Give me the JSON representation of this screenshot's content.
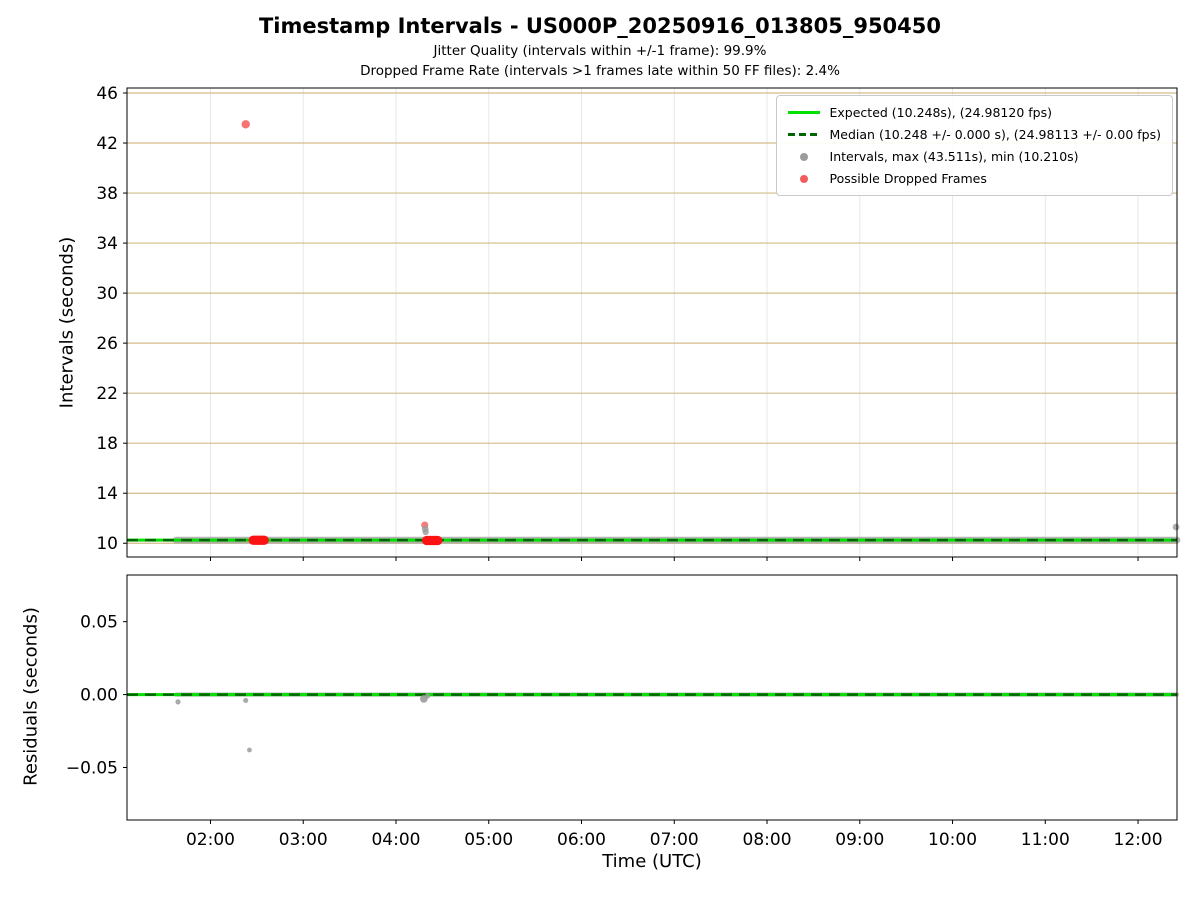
{
  "title": "Timestamp Intervals - US000P_20250916_013805_950450",
  "subtitle1": "Jitter Quality (intervals within +/-1 frame): 99.9%",
  "subtitle2": "Dropped Frame Rate (intervals >1 frames late within 50 FF files): 2.4%",
  "colors": {
    "expected": "#00e100",
    "median": "#006400",
    "interval_marker": "#9b9b9b",
    "dropped": "#f25c5c",
    "dropped_solid": "#fb1212",
    "grid_y": "#d2bc8a",
    "grid_x": "#e7e7e7",
    "spine": "#000000"
  },
  "legend": {
    "items": [
      {
        "marker": "line",
        "color": "expected",
        "label": "Expected (10.248s), (24.98120 fps)"
      },
      {
        "marker": "dashed-line",
        "color": "median",
        "label": "Median (10.248 +/- 0.000 s), (24.98113 +/- 0.00 fps)"
      },
      {
        "marker": "dot",
        "color": "interval_marker",
        "label": "Intervals, max (43.511s), min (10.210s)"
      },
      {
        "marker": "dot",
        "color": "dropped",
        "label": "Possible Dropped Frames"
      }
    ]
  },
  "chart_data": [
    {
      "id": "intervals",
      "type": "scatter",
      "ylabel": "Intervals (seconds)",
      "xlim": [
        1.1,
        12.42
      ],
      "ylim": [
        8.9,
        46.4
      ],
      "grid_x": true,
      "grid_y": true,
      "show_x_labels": false,
      "xticks": [
        {
          "v": 2,
          "label": "02:00"
        },
        {
          "v": 3,
          "label": "03:00"
        },
        {
          "v": 4,
          "label": "04:00"
        },
        {
          "v": 5,
          "label": "05:00"
        },
        {
          "v": 6,
          "label": "06:00"
        },
        {
          "v": 7,
          "label": "07:00"
        },
        {
          "v": 8,
          "label": "08:00"
        },
        {
          "v": 9,
          "label": "09:00"
        },
        {
          "v": 10,
          "label": "10:00"
        },
        {
          "v": 11,
          "label": "11:00"
        },
        {
          "v": 12,
          "label": "12:00"
        }
      ],
      "yticks": [
        {
          "v": 10,
          "label": "10"
        },
        {
          "v": 14,
          "label": "14"
        },
        {
          "v": 18,
          "label": "18"
        },
        {
          "v": 22,
          "label": "22"
        },
        {
          "v": 26,
          "label": "26"
        },
        {
          "v": 30,
          "label": "30"
        },
        {
          "v": 34,
          "label": "34"
        },
        {
          "v": 38,
          "label": "38"
        },
        {
          "v": 42,
          "label": "42"
        },
        {
          "v": 46,
          "label": "46"
        }
      ],
      "lines": [
        {
          "y": 10.248,
          "color": "expected",
          "width": 3,
          "dash": ""
        },
        {
          "y": 10.248,
          "color": "median",
          "width": 2.5,
          "dash": "11 7"
        }
      ],
      "runs_below": [
        {
          "x0": 1.63,
          "x1": 12.42,
          "y": 10.248,
          "r": 3.4,
          "color": "interval_marker",
          "opacity": 0.75
        }
      ],
      "runs_above": [
        {
          "x0": 2.46,
          "x1": 2.58,
          "y": 10.24,
          "r": 4.6,
          "color": "dropped_solid",
          "opacity": 1
        },
        {
          "x0": 4.33,
          "x1": 4.45,
          "y": 10.22,
          "r": 4.6,
          "color": "dropped_solid",
          "opacity": 1
        }
      ],
      "points": [
        {
          "x": 2.38,
          "y": 43.5,
          "r": 4.2,
          "color": "dropped",
          "opacity": 0.85
        },
        {
          "x": 4.31,
          "y": 11.45,
          "r": 3.6,
          "color": "dropped",
          "opacity": 0.8
        },
        {
          "x": 4.315,
          "y": 11.15,
          "r": 3.4,
          "color": "interval_marker",
          "opacity": 0.8
        },
        {
          "x": 4.32,
          "y": 10.9,
          "r": 3.2,
          "color": "interval_marker",
          "opacity": 0.8
        },
        {
          "x": 12.41,
          "y": 11.3,
          "r": 3.4,
          "color": "interval_marker",
          "opacity": 0.8
        }
      ],
      "stats": {
        "expected_s": 10.248,
        "expected_fps": 24.9812,
        "median_s": 10.248,
        "median_fps": 24.98113,
        "max_s": 43.511,
        "min_s": 10.21,
        "jitter_quality_pct": 99.9,
        "dropped_frame_rate_pct": 2.4
      }
    },
    {
      "id": "residuals",
      "type": "scatter",
      "ylabel": "Residuals (seconds)",
      "xlabel": "Time (UTC)",
      "xlim": [
        1.1,
        12.42
      ],
      "ylim": [
        -0.086,
        0.082
      ],
      "grid_x": false,
      "grid_y": false,
      "show_x_labels": true,
      "xticks": [
        {
          "v": 2,
          "label": "02:00"
        },
        {
          "v": 3,
          "label": "03:00"
        },
        {
          "v": 4,
          "label": "04:00"
        },
        {
          "v": 5,
          "label": "05:00"
        },
        {
          "v": 6,
          "label": "06:00"
        },
        {
          "v": 7,
          "label": "07:00"
        },
        {
          "v": 8,
          "label": "08:00"
        },
        {
          "v": 9,
          "label": "09:00"
        },
        {
          "v": 10,
          "label": "10:00"
        },
        {
          "v": 11,
          "label": "11:00"
        },
        {
          "v": 12,
          "label": "12:00"
        }
      ],
      "yticks": [
        {
          "v": -0.05,
          "label": "−0.05"
        },
        {
          "v": 0,
          "label": "0.00"
        },
        {
          "v": 0.05,
          "label": "0.05"
        }
      ],
      "lines": [
        {
          "y": 0,
          "color": "expected",
          "width": 3,
          "dash": ""
        },
        {
          "y": 0,
          "color": "median",
          "width": 2.5,
          "dash": "11 7"
        }
      ],
      "runs_below": [
        {
          "x0": 1.63,
          "x1": 12.42,
          "y": 0,
          "r": 2.2,
          "color": "interval_marker",
          "opacity": 0.6
        }
      ],
      "runs_above": [],
      "points": [
        {
          "x": 1.65,
          "y": -0.005,
          "r": 2.6,
          "color": "interval_marker",
          "opacity": 0.85
        },
        {
          "x": 2.38,
          "y": -0.004,
          "r": 2.6,
          "color": "interval_marker",
          "opacity": 0.85
        },
        {
          "x": 2.42,
          "y": -0.038,
          "r": 2.4,
          "color": "interval_marker",
          "opacity": 0.85
        },
        {
          "x": 4.3,
          "y": -0.003,
          "r": 3.8,
          "color": "interval_marker",
          "opacity": 0.9
        },
        {
          "x": 4.34,
          "y": -0.001,
          "r": 2.6,
          "color": "interval_marker",
          "opacity": 0.85
        }
      ]
    }
  ]
}
